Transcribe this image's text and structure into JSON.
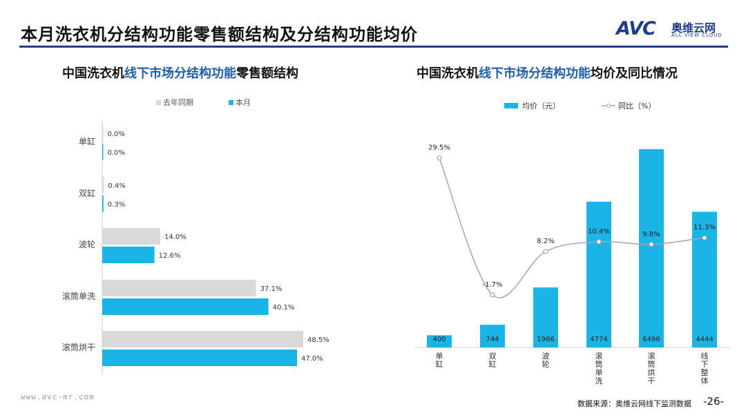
{
  "page": {
    "title": "本月洗衣机分结构功能零售额结构及分结构功能均价",
    "logo_text": "AVC",
    "logo_cn": "奥维云网",
    "logo_en": "ALL VIEW CLOUD",
    "footer_url": "www.avc-mr.com",
    "footer_source": "数据来源：奥维云网线下监测数据",
    "page_number": "-26-"
  },
  "colors": {
    "last_year": "#d9d9d9",
    "this_month": "#1bb4e6",
    "brand": "#1f3c88",
    "line": "#a6a6a6"
  },
  "chart_data": [
    {
      "type": "bar",
      "orientation": "horizontal",
      "title_parts": [
        "中国洗衣机",
        "线下市场分结构功能",
        "零售额结构"
      ],
      "categories": [
        "单缸",
        "双缸",
        "波轮",
        "滚筒单洗",
        "滚筒烘干"
      ],
      "series": [
        {
          "name": "去年同期",
          "values": [
            0.0,
            0.4,
            14.0,
            37.1,
            48.5
          ],
          "labels": [
            "0.0%",
            "0.4%",
            "14.0%",
            "37.1%",
            "48.5%"
          ]
        },
        {
          "name": "本月",
          "values": [
            0.0,
            0.3,
            12.6,
            40.1,
            47.0
          ],
          "labels": [
            "0.0%",
            "0.3%",
            "12.6%",
            "40.1%",
            "47.0%"
          ]
        }
      ],
      "legend_position": "top",
      "grid": false
    },
    {
      "type": "bar+line",
      "title_parts": [
        "中国洗衣机",
        "线下市场分结构功能",
        "均价及同比情况"
      ],
      "categories": [
        "单缸",
        "双缸",
        "波轮",
        "滚筒单洗",
        "滚筒烘干",
        "线下整体"
      ],
      "bar_series": {
        "name": "均价（元）",
        "values": [
          400,
          744,
          1966,
          4774,
          6496,
          4444
        ]
      },
      "line_series": {
        "name": "同比（%）",
        "values": [
          29.5,
          -1.7,
          8.2,
          10.4,
          9.8,
          11.3
        ],
        "labels": [
          "29.5%",
          "-1.7%",
          "8.2%",
          "10.4%",
          "9.8%",
          "11.3%"
        ]
      },
      "legend_position": "top",
      "grid": false
    }
  ]
}
